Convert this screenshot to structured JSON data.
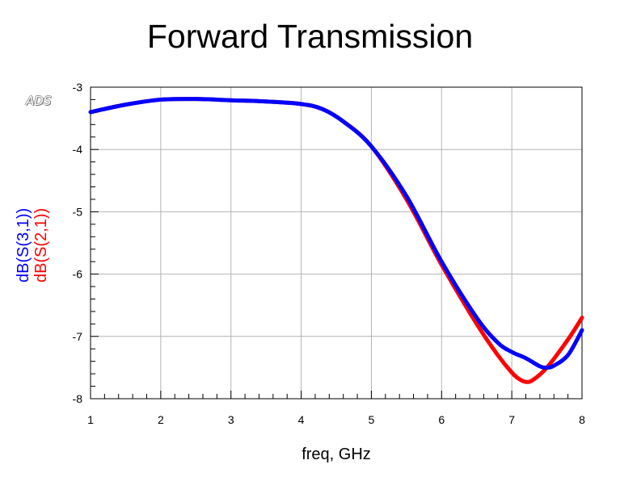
{
  "brand_logo": "ADS",
  "chart_data": {
    "type": "line",
    "title": "Forward Transmission",
    "xlabel": "freq, GHz",
    "ylabel_lines": [
      "dB(S(3,1))",
      "dB(S(2,1))"
    ],
    "xlim": [
      1,
      8
    ],
    "ylim": [
      -8,
      -3
    ],
    "xticks": [
      1,
      2,
      3,
      4,
      5,
      6,
      7,
      8
    ],
    "yticks": [
      -8,
      -7,
      -6,
      -5,
      -4,
      -3
    ],
    "grid": true,
    "series": [
      {
        "name": "dB(S(2,1))",
        "color": "#ff0000",
        "x": [
          1.0,
          1.5,
          2.0,
          2.5,
          3.0,
          3.5,
          4.0,
          4.3,
          4.6,
          5.0,
          5.5,
          6.0,
          6.5,
          6.8,
          7.0,
          7.1,
          7.2,
          7.3,
          7.5,
          7.8,
          8.0
        ],
        "y": [
          -3.4,
          -3.28,
          -3.2,
          -3.19,
          -3.21,
          -3.23,
          -3.27,
          -3.35,
          -3.55,
          -3.95,
          -4.8,
          -5.85,
          -6.8,
          -7.3,
          -7.58,
          -7.68,
          -7.73,
          -7.7,
          -7.5,
          -7.05,
          -6.7
        ]
      },
      {
        "name": "dB(S(3,1))",
        "color": "#0000ff",
        "x": [
          1.0,
          1.5,
          2.0,
          2.5,
          3.0,
          3.5,
          4.0,
          4.3,
          4.6,
          5.0,
          5.5,
          6.0,
          6.5,
          6.8,
          7.0,
          7.2,
          7.4,
          7.5,
          7.6,
          7.8,
          8.0
        ],
        "y": [
          -3.4,
          -3.28,
          -3.2,
          -3.19,
          -3.21,
          -3.23,
          -3.27,
          -3.35,
          -3.55,
          -3.95,
          -4.75,
          -5.8,
          -6.7,
          -7.1,
          -7.25,
          -7.35,
          -7.48,
          -7.5,
          -7.47,
          -7.3,
          -6.9
        ]
      }
    ]
  }
}
